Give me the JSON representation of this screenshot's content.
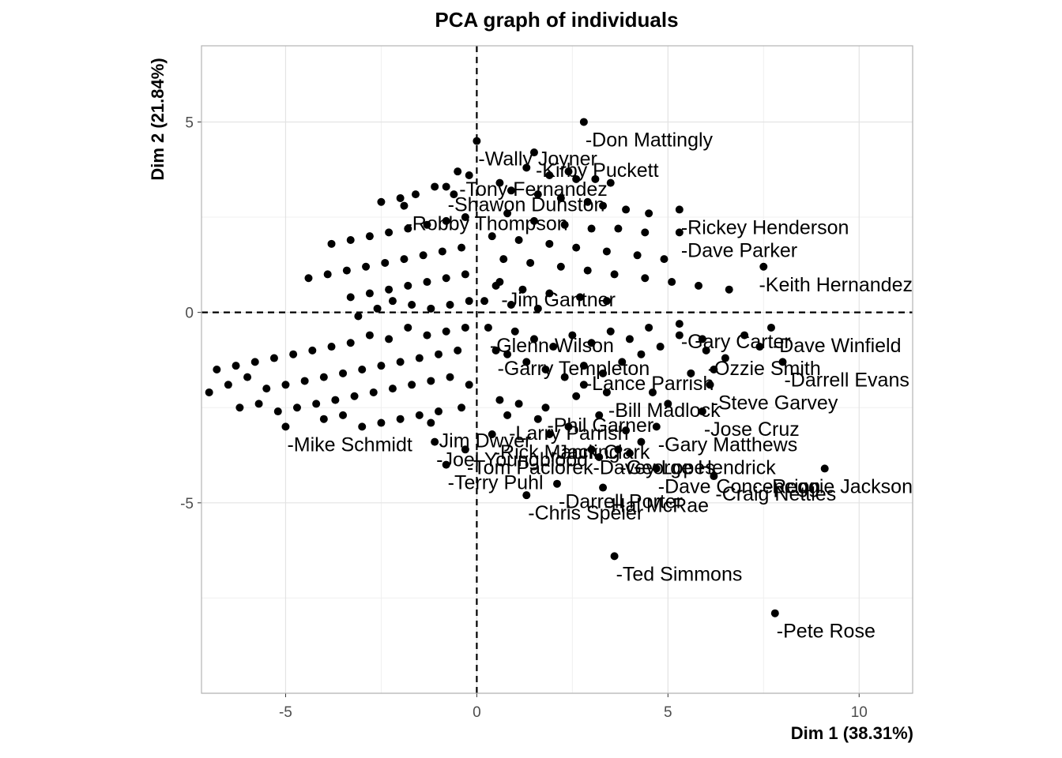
{
  "chart_data": {
    "type": "scatter",
    "title": "PCA graph of individuals",
    "xlabel": "Dim 1 (38.31%)",
    "ylabel": "Dim 2 (21.84%)",
    "xlim": [
      -7.2,
      11.4
    ],
    "ylim": [
      -10,
      7
    ],
    "xticks": [
      -5,
      0,
      5,
      10
    ],
    "yticks": [
      5,
      0,
      -5
    ],
    "grid": true,
    "reference_lines": {
      "x": 0,
      "y": 0,
      "style": "dashed"
    },
    "labeled_points": [
      {
        "label": "-Don Mattingly",
        "x": 2.8,
        "y": 5.0
      },
      {
        "label": "-Wally Joyner",
        "x": 0.0,
        "y": 4.5
      },
      {
        "label": "-Kirby Puckett",
        "x": 1.5,
        "y": 4.2
      },
      {
        "label": "-Tony Fernandez",
        "x": -0.5,
        "y": 3.7
      },
      {
        "label": "-Shawon Dunston",
        "x": -0.8,
        "y": 3.3
      },
      {
        "label": "-Robby Thompson",
        "x": -1.9,
        "y": 2.8
      },
      {
        "label": "-Rickey Henderson",
        "x": 5.3,
        "y": 2.7
      },
      {
        "label": "-Dave Parker",
        "x": 5.3,
        "y": 2.1
      },
      {
        "label": "-Keith Hernandez",
        "x": 7.5,
        "y": 1.2
      },
      {
        "label": "-Gary Carter",
        "x": 5.3,
        "y": -0.3
      },
      {
        "label": "-Dave Winfield",
        "x": 7.7,
        "y": -0.4
      },
      {
        "label": "-Darrell Evans",
        "x": 8.0,
        "y": -1.3
      },
      {
        "label": "-Steve Garvey",
        "x": 6.1,
        "y": -1.9
      },
      {
        "label": "-Gary Matthews",
        "x": 4.7,
        "y": -3.0
      },
      {
        "label": "-George Hendrick",
        "x": 3.7,
        "y": -3.6
      },
      {
        "label": "-Dave Concepcion",
        "x": 4.7,
        "y": -4.1
      },
      {
        "label": "-Craig Nettles",
        "x": 6.2,
        "y": -4.3
      },
      {
        "label": "-Reggie Jackson",
        "x": 9.1,
        "y": -4.1
      },
      {
        "label": "-Darrell Porter",
        "x": 2.1,
        "y": -4.5
      },
      {
        "label": "-Hal McRae",
        "x": 3.3,
        "y": -4.6
      },
      {
        "label": "-Chris Speier",
        "x": 1.3,
        "y": -4.8
      },
      {
        "label": "-Ted Simmons",
        "x": 3.6,
        "y": -6.4
      },
      {
        "label": "-Pete Rose",
        "x": 7.8,
        "y": -7.9
      },
      {
        "label": "-Terry Puhl",
        "x": -0.8,
        "y": -4.0
      },
      {
        "label": "-Tom Paciorek",
        "x": -0.3,
        "y": -3.6
      },
      {
        "label": "-Joel Youngblood",
        "x": -1.1,
        "y": -3.4
      },
      {
        "label": "-Jim Dwyer",
        "x": -1.2,
        "y": -2.9
      },
      {
        "label": "-Mike Schmidt",
        "x": -5.0,
        "y": -3.0
      },
      {
        "label": "-Rick Manning",
        "x": 0.4,
        "y": -3.2
      },
      {
        "label": "-Davey Lopes",
        "x": 3.0,
        "y": -3.6
      },
      {
        "label": "-Glenn Wilson",
        "x": 0.3,
        "y": -0.4
      },
      {
        "label": "-Garry Templeton",
        "x": 0.5,
        "y": -1.0
      },
      {
        "label": "-Jim Gantner",
        "x": 0.6,
        "y": 0.8
      },
      {
        "label": "-Bill Madlock",
        "x": 3.4,
        "y": -2.1
      },
      {
        "label": "-Jose Cruz",
        "x": 5.9,
        "y": -2.6
      },
      {
        "label": "-Lance Parrish",
        "x": 2.8,
        "y": -1.4
      },
      {
        "label": "-Ozzie Smith",
        "x": 6.0,
        "y": -1.0
      },
      {
        "label": "-Phil Garner",
        "x": 1.8,
        "y": -2.5
      },
      {
        "label": "-Larry Parrish",
        "x": 0.8,
        "y": -2.7
      },
      {
        "label": "-Jack Clark",
        "x": 1.9,
        "y": -3.2
      }
    ],
    "unlabeled_points": [
      [
        1.3,
        3.8
      ],
      [
        1.9,
        3.6
      ],
      [
        2.4,
        3.7
      ],
      [
        2.6,
        3.5
      ],
      [
        3.1,
        3.5
      ],
      [
        3.5,
        3.4
      ],
      [
        0.6,
        3.4
      ],
      [
        0.9,
        3.2
      ],
      [
        1.6,
        3.1
      ],
      [
        2.2,
        3.0
      ],
      [
        2.9,
        2.9
      ],
      [
        3.3,
        2.8
      ],
      [
        3.9,
        2.7
      ],
      [
        4.5,
        2.6
      ],
      [
        0.8,
        2.6
      ],
      [
        1.5,
        2.4
      ],
      [
        2.3,
        2.3
      ],
      [
        3.0,
        2.2
      ],
      [
        3.7,
        2.2
      ],
      [
        4.4,
        2.1
      ],
      [
        0.4,
        2.0
      ],
      [
        1.1,
        1.9
      ],
      [
        1.9,
        1.8
      ],
      [
        2.6,
        1.7
      ],
      [
        3.4,
        1.6
      ],
      [
        4.2,
        1.5
      ],
      [
        4.9,
        1.4
      ],
      [
        0.7,
        1.4
      ],
      [
        1.4,
        1.3
      ],
      [
        2.2,
        1.2
      ],
      [
        2.9,
        1.1
      ],
      [
        3.6,
        1.0
      ],
      [
        4.4,
        0.9
      ],
      [
        5.1,
        0.8
      ],
      [
        5.8,
        0.7
      ],
      [
        6.6,
        0.6
      ],
      [
        0.5,
        0.7
      ],
      [
        1.2,
        0.6
      ],
      [
        1.9,
        0.5
      ],
      [
        2.7,
        0.4
      ],
      [
        3.4,
        0.3
      ],
      [
        0.2,
        0.3
      ],
      [
        0.9,
        0.2
      ],
      [
        1.6,
        0.1
      ],
      [
        -0.2,
        3.6
      ],
      [
        -0.6,
        3.1
      ],
      [
        -1.1,
        3.3
      ],
      [
        -1.6,
        3.1
      ],
      [
        -2.0,
        3.0
      ],
      [
        -2.5,
        2.9
      ],
      [
        -0.3,
        2.5
      ],
      [
        -0.8,
        2.4
      ],
      [
        -1.3,
        2.3
      ],
      [
        -1.8,
        2.2
      ],
      [
        -2.3,
        2.1
      ],
      [
        -2.8,
        2.0
      ],
      [
        -3.3,
        1.9
      ],
      [
        -3.8,
        1.8
      ],
      [
        -0.4,
        1.7
      ],
      [
        -0.9,
        1.6
      ],
      [
        -1.4,
        1.5
      ],
      [
        -1.9,
        1.4
      ],
      [
        -2.4,
        1.3
      ],
      [
        -2.9,
        1.2
      ],
      [
        -3.4,
        1.1
      ],
      [
        -3.9,
        1.0
      ],
      [
        -4.4,
        0.9
      ],
      [
        -0.3,
        1.0
      ],
      [
        -0.8,
        0.9
      ],
      [
        -1.3,
        0.8
      ],
      [
        -1.8,
        0.7
      ],
      [
        -2.3,
        0.6
      ],
      [
        -2.8,
        0.5
      ],
      [
        -3.3,
        0.4
      ],
      [
        -0.2,
        0.3
      ],
      [
        -0.7,
        0.2
      ],
      [
        -1.2,
        0.1
      ],
      [
        -1.7,
        0.2
      ],
      [
        -2.2,
        0.3
      ],
      [
        -2.6,
        0.1
      ],
      [
        -3.1,
        -0.1
      ],
      [
        -0.3,
        -0.4
      ],
      [
        -0.8,
        -0.5
      ],
      [
        -1.3,
        -0.6
      ],
      [
        -1.8,
        -0.4
      ],
      [
        -2.3,
        -0.7
      ],
      [
        -2.8,
        -0.6
      ],
      [
        -3.3,
        -0.8
      ],
      [
        -3.8,
        -0.9
      ],
      [
        -4.3,
        -1.0
      ],
      [
        -4.8,
        -1.1
      ],
      [
        -5.3,
        -1.2
      ],
      [
        -5.8,
        -1.3
      ],
      [
        -6.3,
        -1.4
      ],
      [
        -6.8,
        -1.5
      ],
      [
        -0.5,
        -1.0
      ],
      [
        -1.0,
        -1.1
      ],
      [
        -1.5,
        -1.2
      ],
      [
        -2.0,
        -1.3
      ],
      [
        -2.5,
        -1.4
      ],
      [
        -3.0,
        -1.5
      ],
      [
        -3.5,
        -1.6
      ],
      [
        -4.0,
        -1.7
      ],
      [
        -4.5,
        -1.8
      ],
      [
        -5.0,
        -1.9
      ],
      [
        -5.5,
        -2.0
      ],
      [
        -6.0,
        -1.7
      ],
      [
        -6.5,
        -1.9
      ],
      [
        -7.0,
        -2.1
      ],
      [
        -0.7,
        -1.7
      ],
      [
        -1.2,
        -1.8
      ],
      [
        -1.7,
        -1.9
      ],
      [
        -2.2,
        -2.0
      ],
      [
        -2.7,
        -2.1
      ],
      [
        -3.2,
        -2.2
      ],
      [
        -3.7,
        -2.3
      ],
      [
        -4.2,
        -2.4
      ],
      [
        -4.7,
        -2.5
      ],
      [
        -5.2,
        -2.6
      ],
      [
        -5.7,
        -2.4
      ],
      [
        -6.2,
        -2.5
      ],
      [
        -0.2,
        -1.9
      ],
      [
        -0.4,
        -2.5
      ],
      [
        -1.0,
        -2.6
      ],
      [
        -1.5,
        -2.7
      ],
      [
        -2.0,
        -2.8
      ],
      [
        -2.5,
        -2.9
      ],
      [
        -3.0,
        -3.0
      ],
      [
        -3.5,
        -2.7
      ],
      [
        -4.0,
        -2.8
      ],
      [
        0.8,
        -1.1
      ],
      [
        1.3,
        -1.3
      ],
      [
        1.8,
        -1.5
      ],
      [
        2.3,
        -1.7
      ],
      [
        2.8,
        -1.9
      ],
      [
        3.3,
        -1.6
      ],
      [
        3.8,
        -1.3
      ],
      [
        4.3,
        -1.1
      ],
      [
        4.8,
        -0.9
      ],
      [
        5.3,
        -0.6
      ],
      [
        1.0,
        -0.5
      ],
      [
        1.5,
        -0.7
      ],
      [
        2.0,
        -0.9
      ],
      [
        2.5,
        -0.6
      ],
      [
        3.0,
        -0.8
      ],
      [
        3.5,
        -0.5
      ],
      [
        4.0,
        -0.7
      ],
      [
        4.5,
        -0.4
      ],
      [
        7.0,
        -0.6
      ],
      [
        5.9,
        -0.7
      ],
      [
        6.5,
        -1.2
      ],
      [
        7.4,
        -0.9
      ],
      [
        5.6,
        -1.6
      ],
      [
        6.2,
        -1.5
      ],
      [
        4.6,
        -2.1
      ],
      [
        5.0,
        -2.4
      ],
      [
        2.6,
        -2.2
      ],
      [
        3.2,
        -2.7
      ],
      [
        1.6,
        -2.8
      ],
      [
        2.4,
        -3.0
      ],
      [
        3.9,
        -3.1
      ],
      [
        4.3,
        -3.4
      ],
      [
        1.1,
        -2.4
      ],
      [
        0.6,
        -2.3
      ],
      [
        3.2,
        -3.8
      ],
      [
        4.0,
        -3.7
      ]
    ]
  }
}
